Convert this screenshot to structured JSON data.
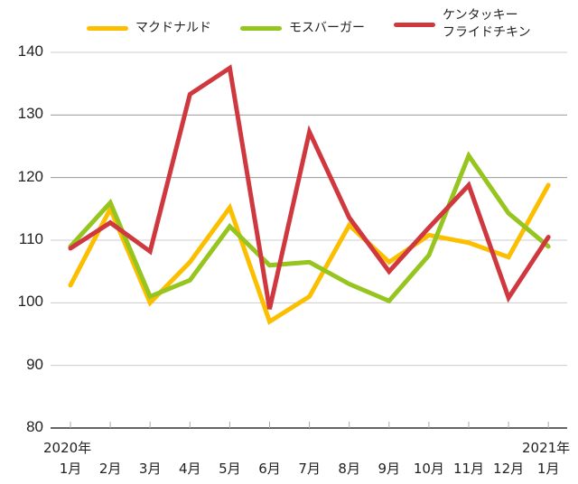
{
  "chart_data": {
    "type": "line",
    "title": "",
    "xlabel": "",
    "ylabel": "",
    "ylim": [
      80,
      140
    ],
    "yticks": [
      80,
      90,
      100,
      110,
      120,
      130,
      140
    ],
    "grid": true,
    "legend_position": "top",
    "categories": [
      "1月",
      "2月",
      "3月",
      "4月",
      "5月",
      "6月",
      "7月",
      "8月",
      "9月",
      "10月",
      "11月",
      "12月",
      "1月"
    ],
    "year_labels": [
      {
        "text": "2020年",
        "at": 0
      },
      {
        "text": "2021年",
        "at": 12
      }
    ],
    "series": [
      {
        "name": "マクドナルド",
        "color": "#FBBF00",
        "values": [
          102.8,
          115.0,
          100.0,
          106.5,
          115.2,
          97.0,
          101.0,
          112.4,
          106.5,
          110.8,
          109.6,
          107.3,
          118.8
        ]
      },
      {
        "name": "モスバーガー",
        "color": "#95C51E",
        "values": [
          109.0,
          116.0,
          101.0,
          103.6,
          112.2,
          106.0,
          106.5,
          103.0,
          100.3,
          107.6,
          123.5,
          114.3,
          109.0
        ]
      },
      {
        "name": "ケンタッキー\nフライドチキン",
        "color": "#D0383F",
        "values": [
          108.7,
          112.8,
          108.2,
          133.3,
          137.5,
          99.0,
          127.3,
          113.6,
          105.0,
          112.0,
          118.8,
          100.8,
          110.5
        ]
      }
    ]
  },
  "legend": [
    {
      "label": "マクドナルド",
      "color": "#FBBF00"
    },
    {
      "label": "モスバーガー",
      "color": "#95C51E"
    },
    {
      "label": "ケンタッキー\nフライドチキン",
      "color": "#D0383F"
    }
  ],
  "axis": {
    "y": [
      "140",
      "130",
      "120",
      "110",
      "100",
      "90",
      "80"
    ],
    "x": [
      "1月",
      "2月",
      "3月",
      "4月",
      "5月",
      "6月",
      "7月",
      "8月",
      "9月",
      "10月",
      "11月",
      "12月",
      "1月"
    ],
    "year_start": "2020年",
    "year_end": "2021年"
  }
}
